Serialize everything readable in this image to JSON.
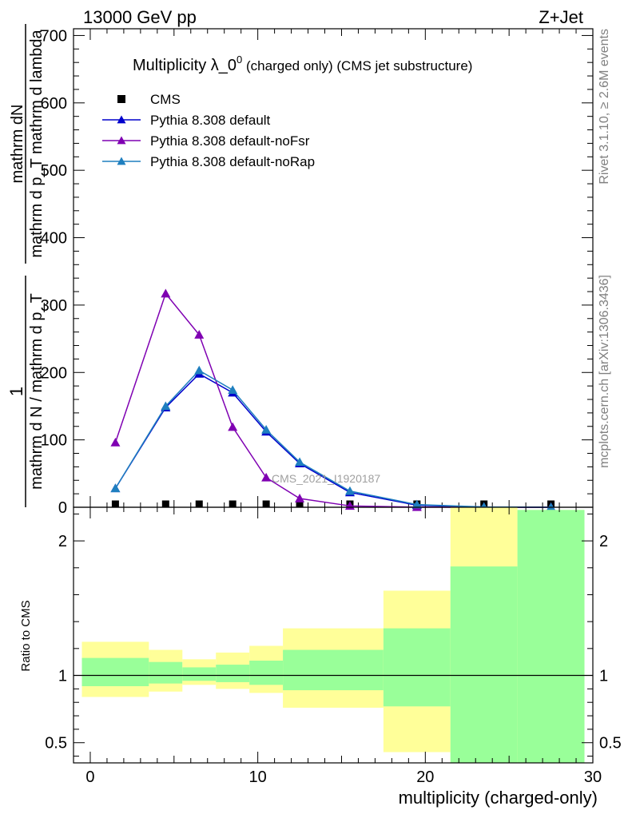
{
  "header": {
    "left": "13000 GeV pp",
    "right": "Z+Jet"
  },
  "side_labels": {
    "rivet": "Rivet 3.1.10, ≥ 2.6M events",
    "mcplots": "mcplots.cern.ch [arXiv:1306.3436]"
  },
  "watermark": "CMS_2021_I1920187",
  "colors": {
    "cms": "#000000",
    "default": "#0000cc",
    "noFsr": "#7f00b2",
    "noRap": "#1f7fbf",
    "band_inner": "#99ff99",
    "band_outer": "#ffff99"
  },
  "chart_data": [
    {
      "type": "line",
      "title_main": "Multiplicity λ_0",
      "title_sup": "0",
      "title_suffix": " (charged only) (CMS jet substructure)",
      "ylabel_num": "mathrm dN",
      "ylabel_den": "mathrm d p_T mathrm d lambda",
      "ylabel_prefix_one": "1",
      "ylabel_prefix_den": "mathrm d N / mathrm d p_T",
      "xlim": [
        -1,
        30
      ],
      "ylim": [
        0,
        710
      ],
      "yticks": [
        0,
        100,
        200,
        300,
        400,
        500,
        600,
        700
      ],
      "legend_position": "top-left",
      "series": [
        {
          "name": "CMS",
          "key": "cms",
          "marker": "square",
          "x": [
            1.5,
            4.5,
            6.5,
            8.5,
            10.5,
            12.5,
            15.5,
            19.5,
            23.5,
            27.5
          ],
          "y": [
            0.5,
            0.5,
            0.5,
            0.5,
            0.5,
            0.5,
            0.5,
            0.5,
            0.5,
            0.5
          ]
        },
        {
          "name": "Pythia 8.308 default",
          "key": "default",
          "marker": "triangle",
          "x": [
            1.5,
            4.5,
            6.5,
            8.5,
            10.5,
            12.5,
            15.5,
            19.5,
            23.5,
            27.5
          ],
          "y": [
            28,
            148,
            198,
            170,
            112,
            65,
            22,
            3,
            0.3,
            0.05
          ]
        },
        {
          "name": "Pythia 8.308 default-noFsr",
          "key": "noFsr",
          "marker": "triangle",
          "x": [
            1.5,
            4.5,
            6.5,
            8.5,
            10.5,
            12.5,
            15.5,
            19.5,
            23.5,
            27.5
          ],
          "y": [
            96,
            317,
            256,
            119,
            44,
            13,
            2,
            0.2,
            0.02,
            0.0
          ]
        },
        {
          "name": "Pythia 8.308 default-noRap",
          "key": "noRap",
          "marker": "triangle",
          "x": [
            1.5,
            4.5,
            6.5,
            8.5,
            10.5,
            12.5,
            15.5,
            19.5,
            23.5,
            27.5
          ],
          "y": [
            28,
            150,
            203,
            174,
            115,
            67,
            24,
            4,
            0.4,
            0.06
          ]
        }
      ]
    },
    {
      "type": "area",
      "ylabel": "Ratio to CMS",
      "xlabel": "multiplicity (charged-only)",
      "xlim": [
        -1,
        30
      ],
      "ylim": [
        0.35,
        2.25
      ],
      "yticks": [
        0.5,
        1,
        2
      ],
      "xticks": [
        0,
        10,
        20,
        30
      ],
      "reference_line": 1,
      "bands": [
        {
          "x0": -0.5,
          "x1": 3.5,
          "inner": [
            0.92,
            1.13
          ],
          "outer": [
            0.84,
            1.25
          ]
        },
        {
          "x0": 3.5,
          "x1": 5.5,
          "inner": [
            0.94,
            1.1
          ],
          "outer": [
            0.88,
            1.19
          ]
        },
        {
          "x0": 5.5,
          "x1": 7.5,
          "inner": [
            0.96,
            1.06
          ],
          "outer": [
            0.93,
            1.12
          ]
        },
        {
          "x0": 7.5,
          "x1": 9.5,
          "inner": [
            0.95,
            1.08
          ],
          "outer": [
            0.9,
            1.17
          ]
        },
        {
          "x0": 9.5,
          "x1": 11.5,
          "inner": [
            0.93,
            1.11
          ],
          "outer": [
            0.87,
            1.22
          ]
        },
        {
          "x0": 11.5,
          "x1": 17.5,
          "inner": [
            0.89,
            1.19
          ],
          "outer": [
            0.76,
            1.35
          ]
        },
        {
          "x0": 17.5,
          "x1": 21.5,
          "inner": [
            0.77,
            1.35
          ],
          "outer": [
            0.43,
            1.63
          ]
        },
        {
          "x0": 21.5,
          "x1": 25.5,
          "inner": [
            0.33,
            1.81
          ],
          "outer": [
            0.33,
            2.32
          ]
        },
        {
          "x0": 25.5,
          "x1": 29.5,
          "inner": [
            0.33,
            2.23
          ],
          "outer": [
            0.33,
            2.23
          ]
        }
      ]
    }
  ]
}
